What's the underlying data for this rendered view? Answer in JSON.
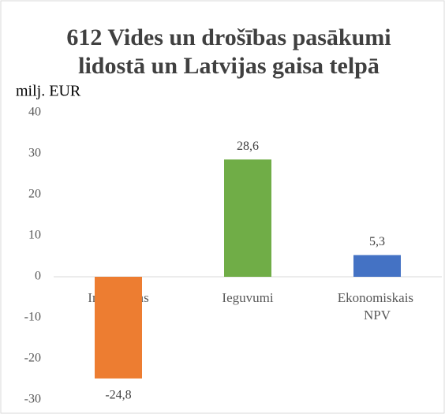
{
  "chart_data": {
    "type": "bar",
    "title": [
      "612 Vides un drošības pasākumi",
      "lidostā un Latvijas gaisa telpā"
    ],
    "y_label": "milj. EUR",
    "categories": [
      "Investīcijas",
      "Ieguvumi",
      "Ekonomiskais NPV"
    ],
    "values": [
      -24.8,
      28.6,
      5.3
    ],
    "value_labels": [
      "-24,8",
      "28,6",
      "5,3"
    ],
    "colors": [
      "#ed7d31",
      "#70ad47",
      "#4472c4"
    ],
    "ylim": [
      -30,
      40
    ],
    "yticks": [
      -30,
      -20,
      -10,
      0,
      10,
      20,
      30,
      40
    ],
    "grid": false
  }
}
